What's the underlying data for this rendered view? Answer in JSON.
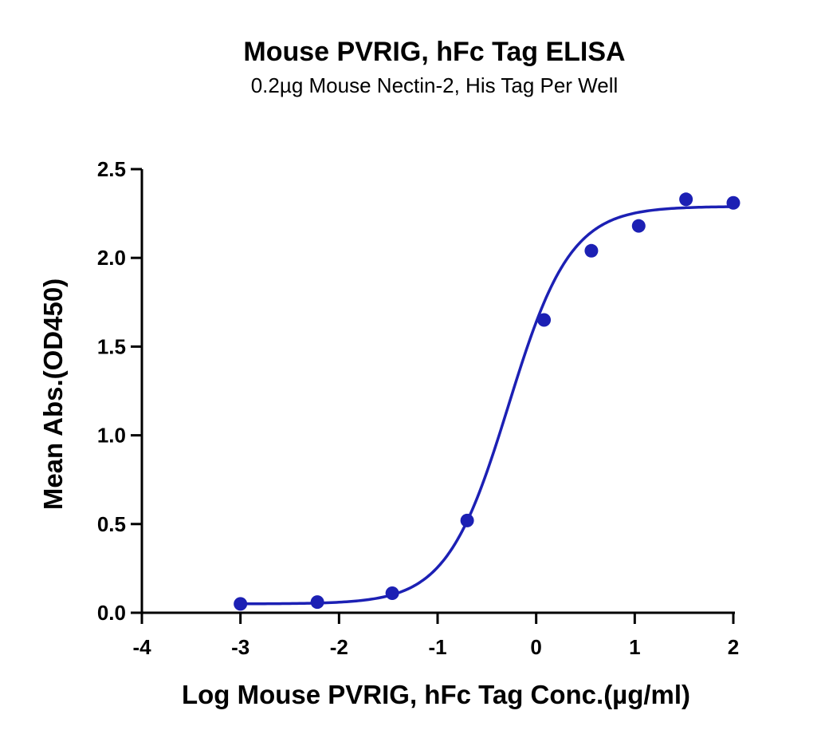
{
  "chart_data": {
    "type": "scatter",
    "title": "Mouse PVRIG, hFc Tag ELISA",
    "subtitle": "0.2µg Mouse Nectin-2, His Tag Per Well",
    "xlabel": "Log Mouse PVRIG, hFc Tag Conc.(µg/ml)",
    "ylabel": "Mean Abs.(OD450)",
    "xlim": [
      -4,
      2
    ],
    "ylim": [
      0,
      2.5
    ],
    "x_ticks": [
      -4,
      -3,
      -2,
      -1,
      0,
      1,
      2
    ],
    "x_tick_labels": [
      "-4",
      "-3",
      "-2",
      "-1",
      "0",
      "1",
      "2"
    ],
    "y_ticks": [
      0,
      0.5,
      1,
      1.5,
      2,
      2.5
    ],
    "y_tick_labels": [
      "0.0",
      "0.5",
      "1.0",
      "1.5",
      "2.0",
      "2.5"
    ],
    "grid": false,
    "series": [
      {
        "x": [
          -3.0,
          -2.22,
          -1.46,
          -0.7,
          0.08,
          0.56,
          1.04,
          1.52,
          2.0
        ],
        "y": [
          0.05,
          0.06,
          0.11,
          0.52,
          1.65,
          2.04,
          2.18,
          2.33,
          2.31
        ],
        "color": "#1c20b4"
      }
    ],
    "fit_curve": {
      "type": "4PL",
      "bottom": 0.05,
      "top": 2.29,
      "log_ec50": -0.28,
      "hill_slope": 1.38,
      "x_range": [
        -3.0,
        2.0
      ],
      "color": "#1c20b4"
    }
  }
}
